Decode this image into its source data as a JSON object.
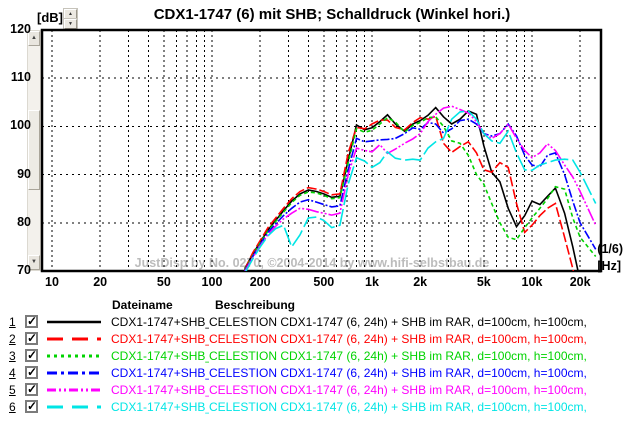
{
  "title": "CDX1-1747 (6) mit SHB; Schalldruck (Winkel hori.)",
  "y_axis": {
    "unit_label": "[dB]",
    "ticks": [
      {
        "v": 120,
        "label": "120"
      },
      {
        "v": 110,
        "label": "110"
      },
      {
        "v": 100,
        "label": "100"
      },
      {
        "v": 90,
        "label": "90"
      },
      {
        "v": 80,
        "label": "80"
      },
      {
        "v": 70,
        "label": "70"
      }
    ]
  },
  "x_axis": {
    "unit_label": "[Hz]",
    "smoothing_label": "(1/6)",
    "ticks": [
      {
        "f": 10,
        "label": "10"
      },
      {
        "f": 20,
        "label": "20"
      },
      {
        "f": 50,
        "label": "50"
      },
      {
        "f": 100,
        "label": "100"
      },
      {
        "f": 200,
        "label": "200"
      },
      {
        "f": 500,
        "label": "500"
      },
      {
        "f": 1000,
        "label": "1k"
      },
      {
        "f": 2000,
        "label": "2k"
      },
      {
        "f": 5000,
        "label": "5k"
      },
      {
        "f": 10000,
        "label": "10k"
      },
      {
        "f": 20000,
        "label": "20k"
      }
    ]
  },
  "watermark": "JustDisp by No. 0270, ©2004-2014 by www.hifi-selbstbau.de",
  "legend": {
    "col_dateiname": "Dateiname",
    "col_beschreibung": "Beschreibung",
    "rows": [
      {
        "num": "1",
        "checked": true,
        "color": "#000000",
        "legend_dash": "",
        "filename": "CDX1-1747+SHB_",
        "description": "CELESTION CDX1-1747 (6, 24h) + SHB im RAR, d=100cm, h=100cm,"
      },
      {
        "num": "2",
        "checked": true,
        "color": "#ff0000",
        "legend_dash": "16,9",
        "filename": "CDX1-1747+SHB_",
        "description": "CELESTION CDX1-1747 (6, 24h) + SHB im RAR, d=100cm, h=100cm,"
      },
      {
        "num": "3",
        "checked": true,
        "color": "#00d300",
        "legend_dash": "3,4",
        "filename": "CDX1-1747+SHB_",
        "description": "CELESTION CDX1-1747 (6, 24h) + SHB im RAR, d=100cm, h=100cm,"
      },
      {
        "num": "4",
        "checked": true,
        "color": "#0000ff",
        "legend_dash": "10,4,3,4",
        "filename": "CDX1-1747+SHB_",
        "description": "CELESTION CDX1-1747 (6, 24h) + SHB im RAR, d=100cm, h=100cm,"
      },
      {
        "num": "5",
        "checked": true,
        "color": "#ff00ff",
        "legend_dash": "9,3,2,3,2,3",
        "filename": "CDX1-1747+SHB_",
        "description": "CELESTION CDX1-1747 (6, 24h) + SHB im RAR, d=100cm, h=100cm,"
      },
      {
        "num": "6",
        "checked": true,
        "color": "#00e5e5",
        "legend_dash": "16,9",
        "filename": "CDX1-1747+SHB_",
        "description": "CELESTION CDX1-1747 (6, 24h) + SHB im RAR, d=100cm, h=100cm,"
      }
    ]
  },
  "chart_data": {
    "type": "line",
    "x_scale": "log",
    "xlim": [
      8.66,
      27000
    ],
    "ylim": [
      70,
      120
    ],
    "grid": true,
    "legend_position": "bottom-table",
    "x_gridlines": [
      10,
      20,
      30,
      40,
      50,
      60,
      70,
      80,
      90,
      100,
      200,
      300,
      400,
      500,
      600,
      700,
      800,
      900,
      1000,
      2000,
      3000,
      4000,
      5000,
      6000,
      7000,
      8000,
      9000,
      10000,
      20000
    ],
    "y_gridlines": [
      80,
      90,
      100,
      110
    ],
    "frequencies": [
      160,
      180,
      200,
      224,
      250,
      280,
      315,
      355,
      400,
      450,
      500,
      560,
      630,
      710,
      800,
      900,
      1000,
      1120,
      1250,
      1400,
      1600,
      1800,
      2000,
      2240,
      2500,
      2800,
      3150,
      3550,
      4000,
      4500,
      5000,
      5600,
      6300,
      7100,
      8000,
      9000,
      10000,
      11200,
      12500,
      14000,
      16000,
      18000,
      20000,
      25000
    ],
    "series": [
      {
        "name": "CDX1-1747+SHB_ (1)",
        "color": "#000000",
        "dash": "",
        "values": [
          70.5,
          73.5,
          76,
          78.5,
          80.5,
          82.5,
          84.5,
          86,
          86.8,
          86.5,
          86,
          85.3,
          85.5,
          93,
          100.3,
          99.3,
          99.7,
          101,
          102.4,
          100.5,
          99,
          100.5,
          101.2,
          102.3,
          103.9,
          102,
          100.5,
          101.5,
          103.2,
          102.5,
          96,
          90.5,
          88.5,
          83,
          79.2,
          81.5,
          84.5,
          83.8,
          85.5,
          87.2,
          82,
          75,
          68,
          55
        ]
      },
      {
        "name": "CDX1-1747+SHB_ (2)",
        "color": "#ff0000",
        "dash": "10,3",
        "values": [
          70.3,
          73.8,
          76.3,
          79,
          81,
          83,
          85,
          86.5,
          87.3,
          87,
          86.5,
          85.8,
          86,
          94.5,
          99.8,
          99.5,
          100.5,
          101.3,
          101.3,
          99.8,
          99.3,
          100.8,
          101.8,
          101.5,
          102.1,
          96.5,
          94.6,
          95.8,
          96.8,
          94.5,
          91,
          90.5,
          92.5,
          91.5,
          84,
          78,
          79.5,
          81.5,
          83,
          84,
          77,
          70.5,
          62,
          50
        ]
      },
      {
        "name": "CDX1-1747+SHB_ (3)",
        "color": "#00d300",
        "dash": "4,3",
        "values": [
          70.2,
          73.2,
          75.8,
          78.3,
          80.3,
          82.2,
          84.2,
          85.7,
          86.4,
          86.2,
          85.7,
          85,
          85.2,
          92.5,
          99.5,
          98.8,
          99.2,
          100.5,
          101.8,
          100.9,
          98.8,
          100.2,
          100.8,
          101.8,
          102,
          100,
          97,
          96.5,
          94,
          90,
          88,
          84,
          80,
          77,
          76.5,
          79,
          81,
          83,
          85,
          87.5,
          87,
          81,
          77,
          73
        ]
      },
      {
        "name": "CDX1-1747+SHB_ (4)",
        "color": "#0000ff",
        "dash": "9,2,2,2",
        "values": [
          70,
          73,
          75.5,
          78,
          79.8,
          81.5,
          83,
          84.3,
          84.8,
          84.3,
          83.8,
          83.3,
          83.5,
          91,
          97.5,
          96.8,
          97,
          97.2,
          97.3,
          97.5,
          98.5,
          99.7,
          99.4,
          100.8,
          100.5,
          98.6,
          99.5,
          101.2,
          101.5,
          100.5,
          98.5,
          98,
          98.5,
          100.5,
          98,
          94,
          92,
          91.6,
          94,
          94.5,
          90,
          84.5,
          80,
          74.5
        ]
      },
      {
        "name": "CDX1-1747+SHB_ (5)",
        "color": "#ff00ff",
        "dash": "13,2,2,2,2,2",
        "values": [
          69.8,
          72.8,
          75.2,
          77.6,
          79.3,
          80.8,
          82,
          83,
          82.8,
          82.3,
          82,
          81.6,
          82,
          90,
          95.5,
          95,
          94.7,
          96.2,
          94.4,
          95.3,
          96.5,
          97.4,
          98.5,
          101,
          102.5,
          103.8,
          104.2,
          103.5,
          102.8,
          101,
          98.5,
          97.5,
          98.5,
          100.5,
          97.5,
          95,
          93.5,
          94.5,
          96.4,
          95,
          92,
          89.5,
          86.5,
          79.5
        ]
      },
      {
        "name": "CDX1-1747+SHB_ (6)",
        "color": "#00e5e5",
        "dash": "18,4",
        "values": [
          69.5,
          72.5,
          75,
          77.3,
          78.8,
          79.5,
          75,
          77.5,
          81,
          81.2,
          80.5,
          79,
          79.5,
          88,
          93.5,
          92.8,
          91.5,
          92.5,
          94.7,
          93.4,
          93,
          93.2,
          93,
          95.5,
          96.8,
          97.5,
          101.5,
          103,
          103.2,
          101.5,
          98.5,
          97,
          96.5,
          99,
          94.5,
          91,
          90.9,
          92,
          92.5,
          93,
          93.2,
          93,
          90.5,
          84
        ]
      }
    ]
  }
}
